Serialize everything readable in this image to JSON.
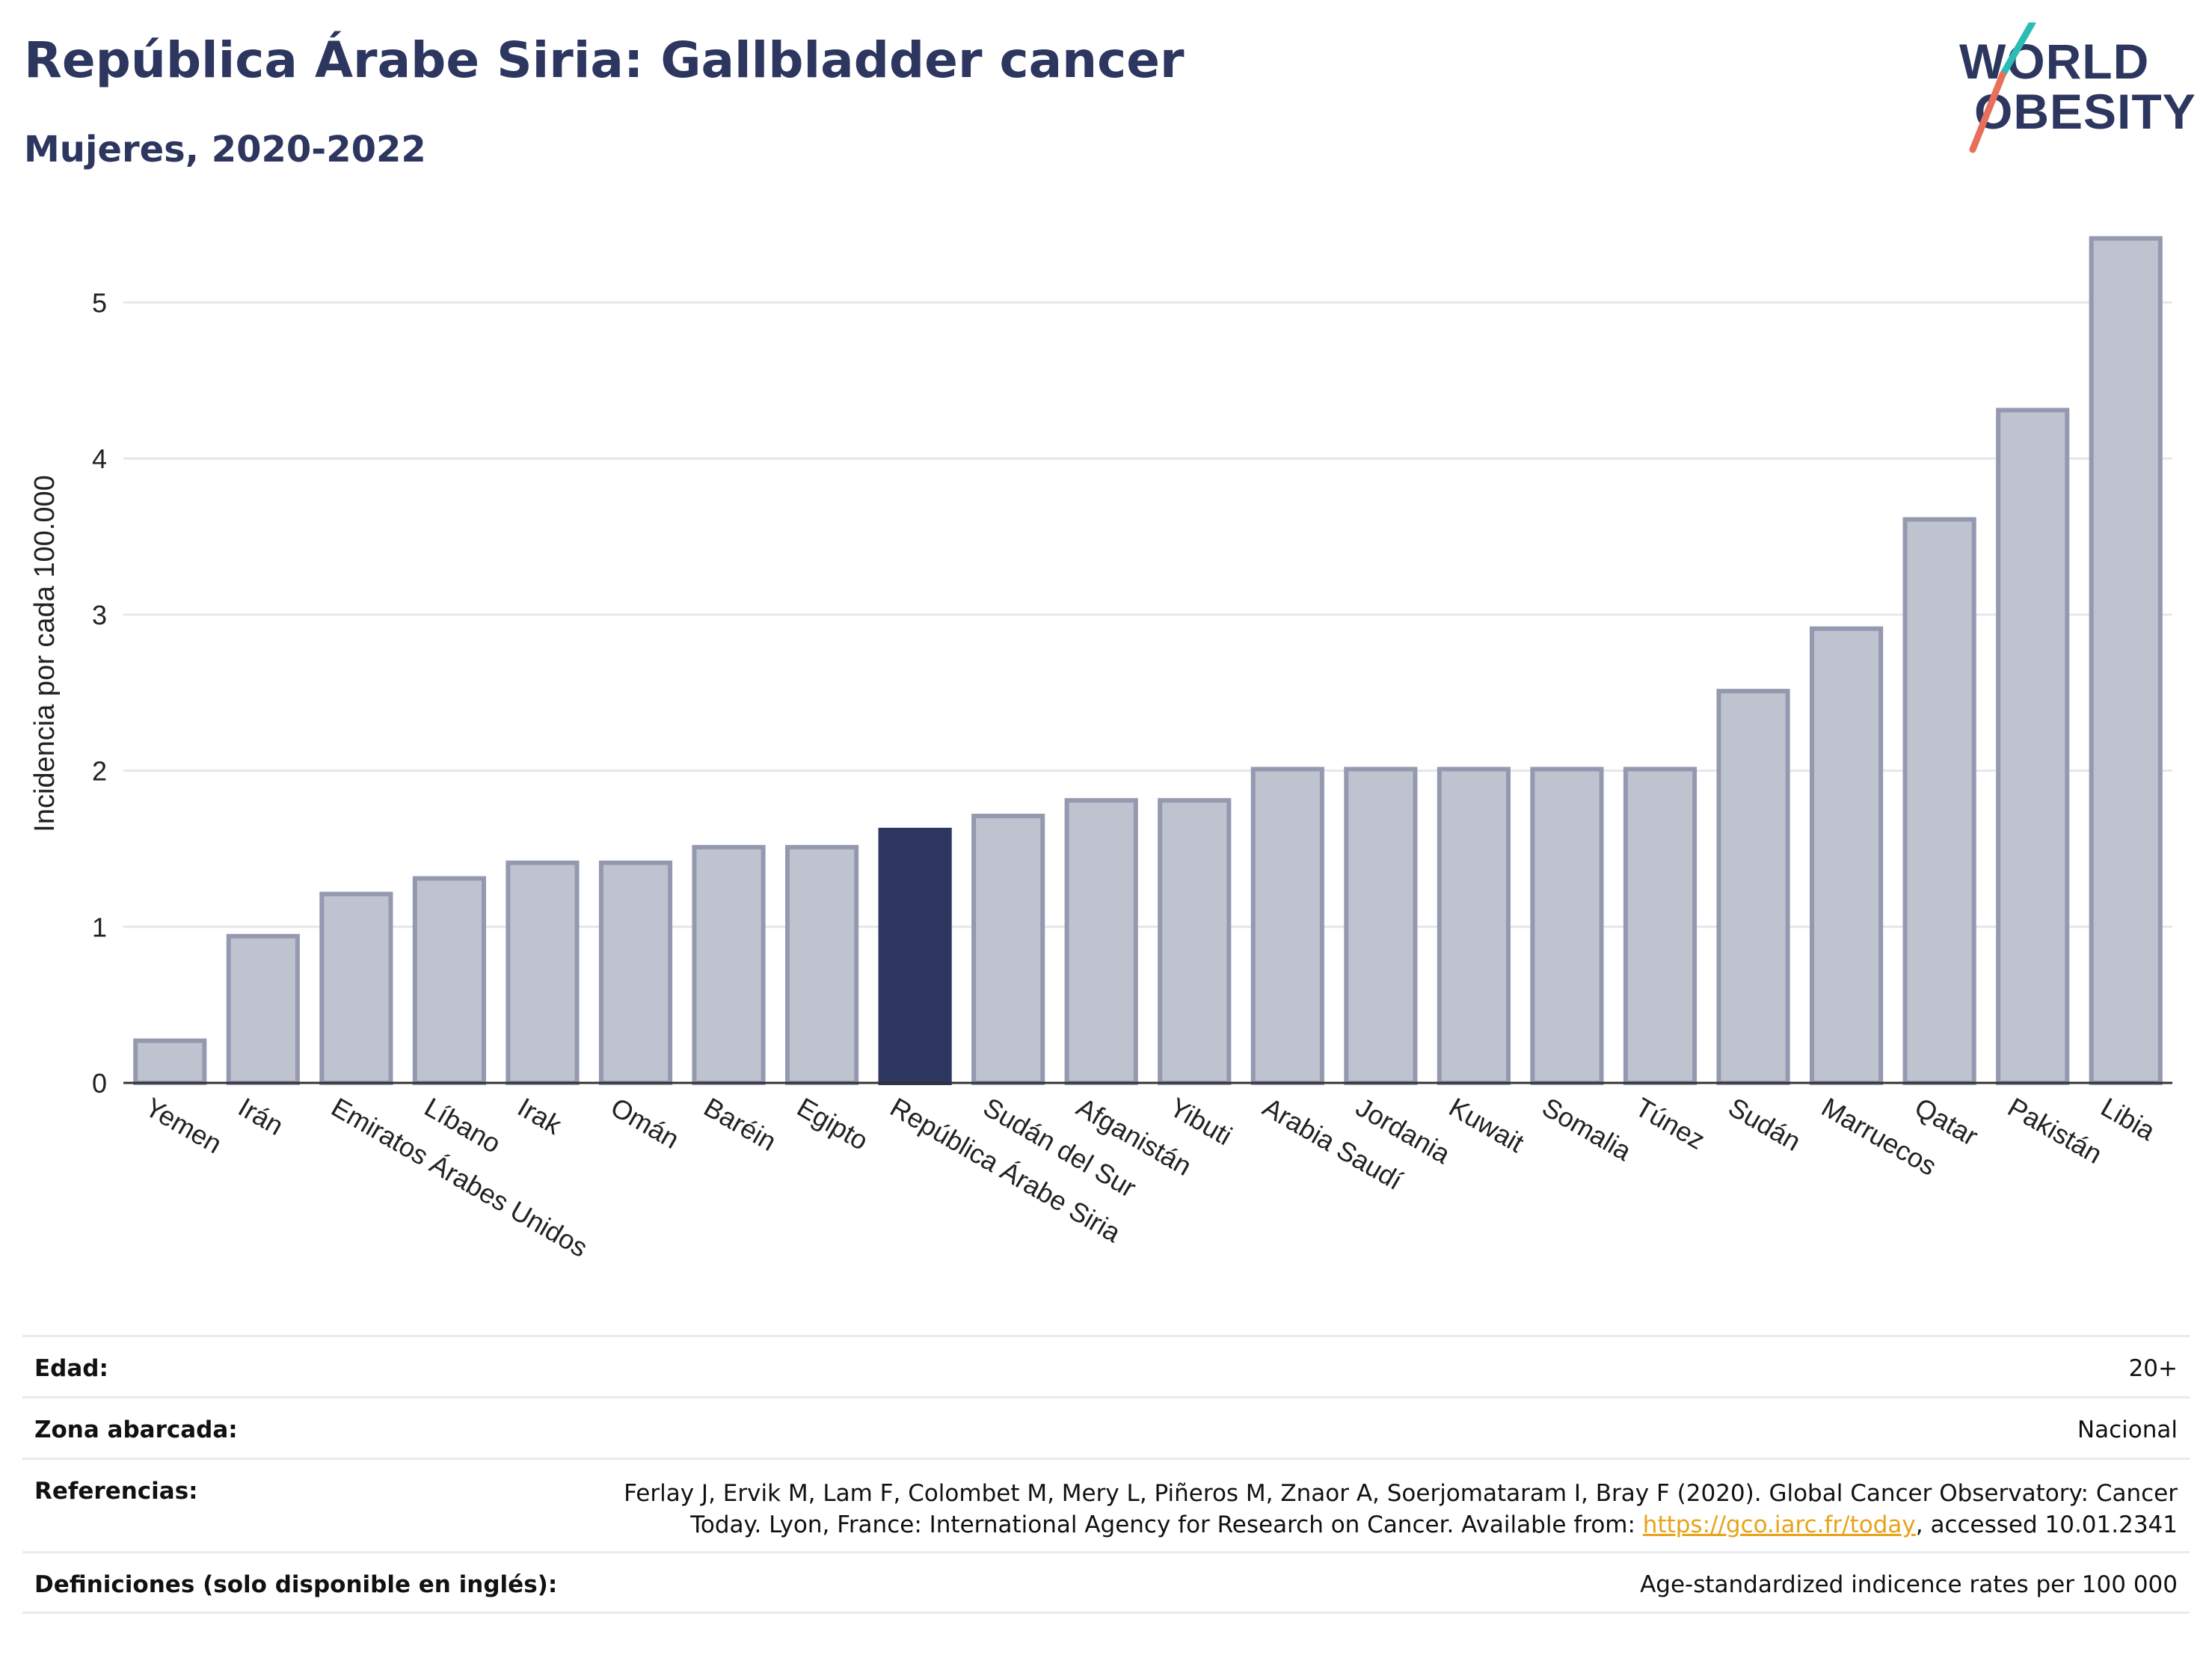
{
  "header": {
    "title": "República Árabe Siria: Gallbladder cancer",
    "subtitle": "Mujeres, 2020-2022",
    "logo_text_line1": "WORLD",
    "logo_text_line2": "OBESITY"
  },
  "colors": {
    "title": "#2c365f",
    "bar_default": "#bfc3cf",
    "bar_border": "#9499b0",
    "bar_highlight": "#2c365f",
    "logo_teal": "#2bbdb5",
    "logo_coral": "#e8705a",
    "link": "#e8a317"
  },
  "chart_data": {
    "type": "bar",
    "title": "República Árabe Siria: Gallbladder cancer",
    "subtitle": "Mujeres, 2020-2022",
    "ylabel": "Incidencia por cada 100.000",
    "xlabel": "",
    "ylim": [
      0,
      5.5
    ],
    "yticks": [
      0,
      1,
      2,
      3,
      4,
      5
    ],
    "grid": true,
    "highlight": "República Árabe Siria",
    "categories": [
      "Yemen",
      "Irán",
      "Emiratos Árabes Unidos",
      "Líbano",
      "Irak",
      "Omán",
      "Baréin",
      "Egipto",
      "República Árabe Siria",
      "Sudán del Sur",
      "Afganistán",
      "Yibuti",
      "Arabia Saudí",
      "Jordania",
      "Kuwait",
      "Somalia",
      "Túnez",
      "Sudán",
      "Marruecos",
      "Qatar",
      "Pakistán",
      "Libia"
    ],
    "values": [
      0.27,
      0.94,
      1.21,
      1.31,
      1.41,
      1.41,
      1.51,
      1.51,
      1.62,
      1.71,
      1.81,
      1.81,
      2.01,
      2.01,
      2.01,
      2.01,
      2.01,
      2.51,
      2.91,
      3.61,
      4.31,
      5.41
    ]
  },
  "footer": {
    "rows": [
      {
        "label": "Edad:",
        "value": "20+"
      },
      {
        "label": "Zona abarcada:",
        "value": "Nacional"
      },
      {
        "label": "Referencias:",
        "value_line1": "Ferlay J, Ervik M, Lam F, Colombet M, Mery L, Piñeros M, Znaor A, Soerjomataram I, Bray F (2020). Global Cancer Observatory: Cancer",
        "value_line2_pre": "Today. Lyon, France: International Agency for Research on Cancer. Available from: ",
        "link": "https://gco.iarc.fr/today",
        "value_line2_post": ", accessed 10.01.2341"
      },
      {
        "label": "Definiciones (solo disponible en inglés):",
        "value": "Age-standardized indicence rates per 100 000"
      }
    ]
  }
}
